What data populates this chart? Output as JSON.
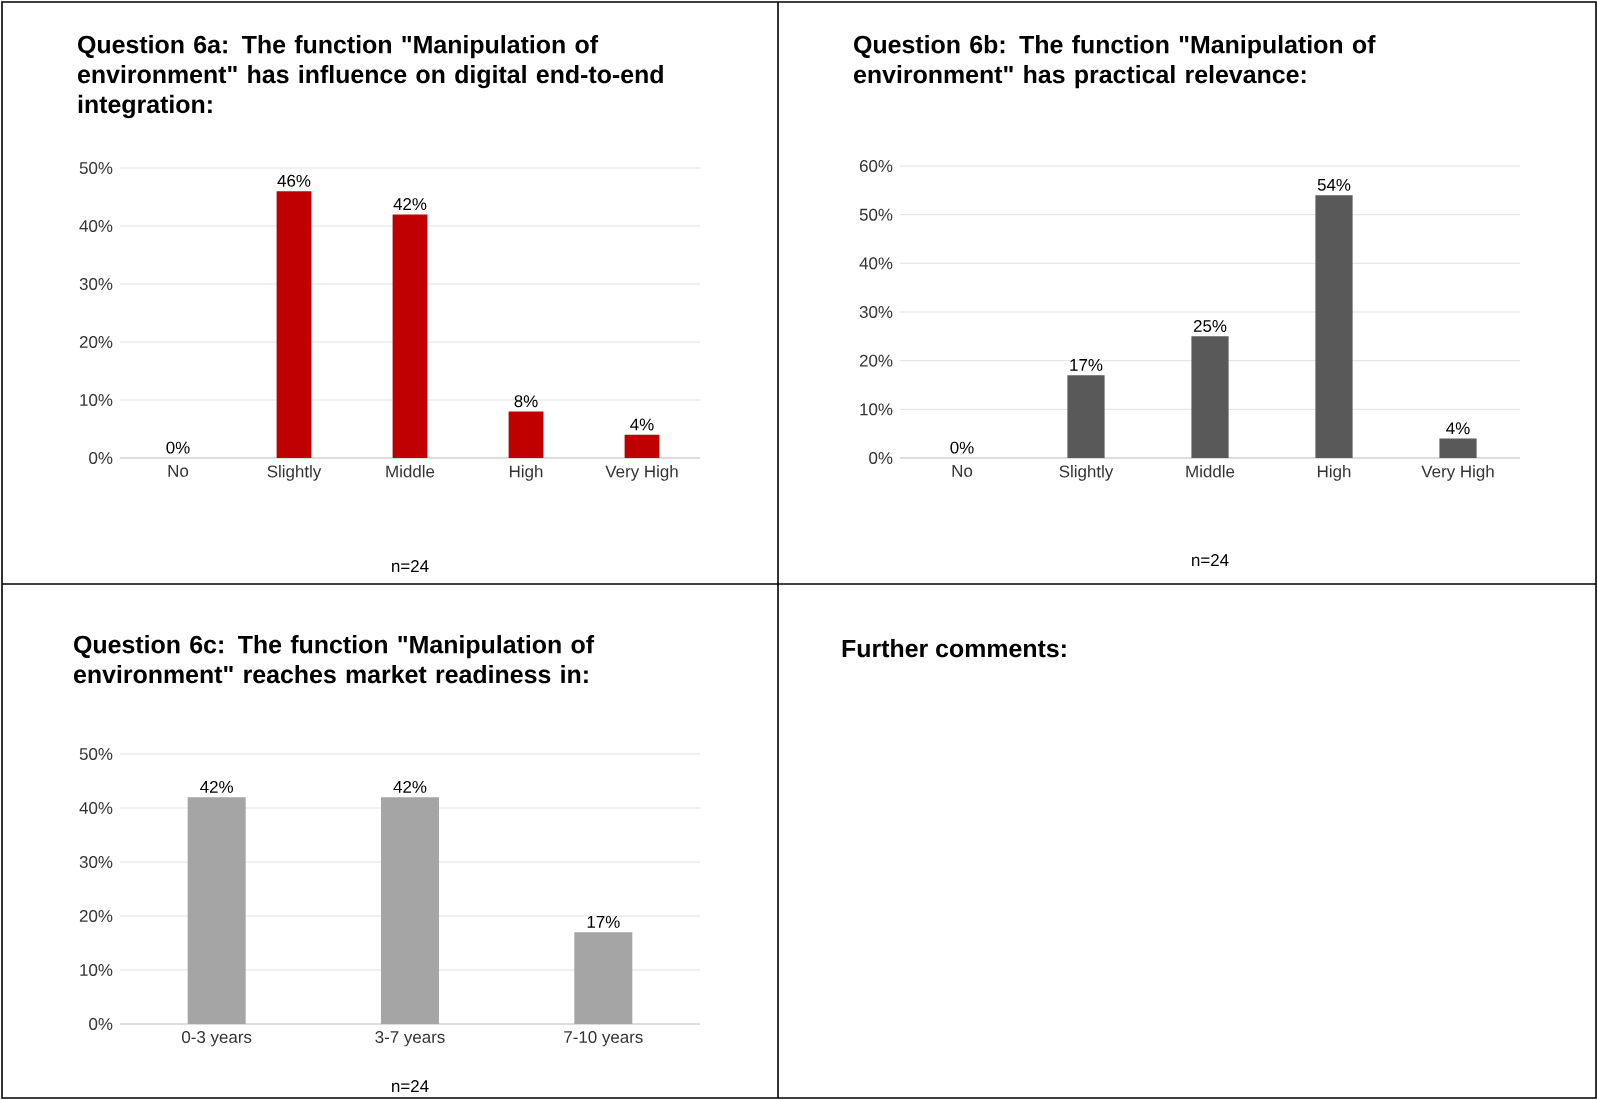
{
  "chart_data": [
    {
      "type": "bar",
      "title": "Question 6a: The function \"Manipulation of environment\" has influence on digital end-to-end integration:",
      "categories": [
        "No",
        "Slightly",
        "Middle",
        "High",
        "Very High"
      ],
      "values": [
        0,
        46,
        42,
        8,
        4
      ],
      "value_labels": [
        "0%",
        "46%",
        "42%",
        "8%",
        "4%"
      ],
      "color": "#c00000",
      "ylim": [
        0,
        50
      ],
      "yticks": [
        {
          "value": 0,
          "label": "0%"
        },
        {
          "value": 10,
          "label": "10%"
        },
        {
          "value": 20,
          "label": "20%"
        },
        {
          "value": 30,
          "label": "30%"
        },
        {
          "value": 40,
          "label": "40%"
        },
        {
          "value": 50,
          "label": "50%"
        }
      ],
      "grid": "y",
      "annotations": [
        "n=24"
      ]
    },
    {
      "type": "bar",
      "title": "Question 6b: The function \"Manipulation of environment\" has practical relevance:",
      "categories": [
        "No",
        "Slightly",
        "Middle",
        "High",
        "Very High"
      ],
      "values": [
        0,
        17,
        25,
        54,
        4
      ],
      "value_labels": [
        "0%",
        "17%",
        "25%",
        "54%",
        "4%"
      ],
      "color": "#595959",
      "ylim": [
        0,
        60
      ],
      "yticks": [
        {
          "value": 0,
          "label": "0%"
        },
        {
          "value": 10,
          "label": "10%"
        },
        {
          "value": 20,
          "label": "20%"
        },
        {
          "value": 30,
          "label": "30%"
        },
        {
          "value": 40,
          "label": "40%"
        },
        {
          "value": 50,
          "label": "50%"
        },
        {
          "value": 60,
          "label": "60%"
        }
      ],
      "grid": "y",
      "annotations": [
        "n=24"
      ]
    },
    {
      "type": "bar",
      "title": "Question 6c: The function \"Manipulation of environment\" reaches market readiness in:",
      "categories": [
        "0-3 years",
        "3-7 years",
        "7-10 years"
      ],
      "values": [
        42,
        42,
        17
      ],
      "value_labels": [
        "42%",
        "42%",
        "17%"
      ],
      "color": "#a5a5a5",
      "ylim": [
        0,
        50
      ],
      "yticks": [
        {
          "value": 0,
          "label": "0%"
        },
        {
          "value": 10,
          "label": "10%"
        },
        {
          "value": 20,
          "label": "20%"
        },
        {
          "value": 30,
          "label": "30%"
        },
        {
          "value": 40,
          "label": "40%"
        },
        {
          "value": 50,
          "label": "50%"
        }
      ],
      "grid": "y",
      "annotations": [
        "n=24"
      ]
    },
    {
      "type": "other",
      "title": "Further comments:"
    }
  ]
}
